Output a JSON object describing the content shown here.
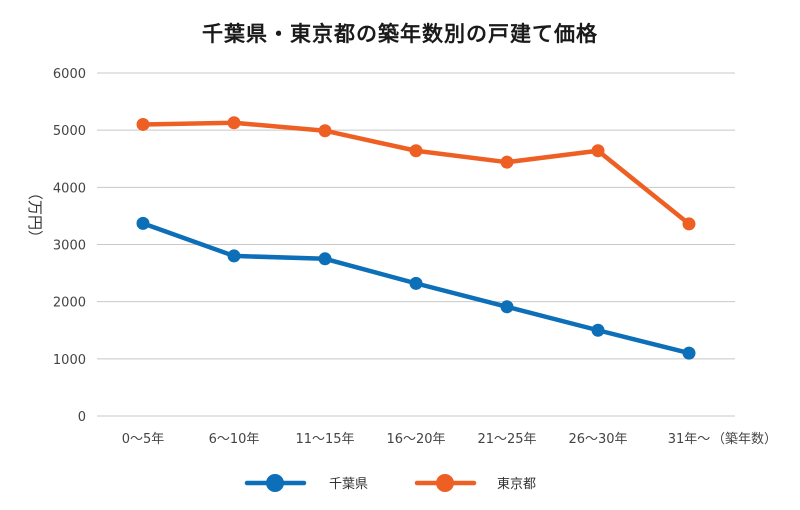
{
  "chart_data": {
    "type": "line",
    "title": "千葉県・東京都の築年数別の戸建て価格",
    "ylabel": "（万円）",
    "xlabel": "（築年数）",
    "ylim": [
      0,
      6000
    ],
    "yticks": [
      0,
      1000,
      2000,
      3000,
      4000,
      5000,
      6000
    ],
    "categories": [
      "0～5年",
      "6～10年",
      "11～15年",
      "16～20年",
      "21～25年",
      "26～30年",
      "31年～"
    ],
    "series": [
      {
        "name": "千葉県",
        "color": "#0d6fb8",
        "values": [
          3370,
          2800,
          2750,
          2320,
          1910,
          1500,
          1100
        ]
      },
      {
        "name": "東京都",
        "color": "#ee5f24",
        "values": [
          5100,
          5130,
          4990,
          4640,
          4440,
          4640,
          3360
        ]
      }
    ],
    "grid": true,
    "legend_position": "bottom"
  }
}
